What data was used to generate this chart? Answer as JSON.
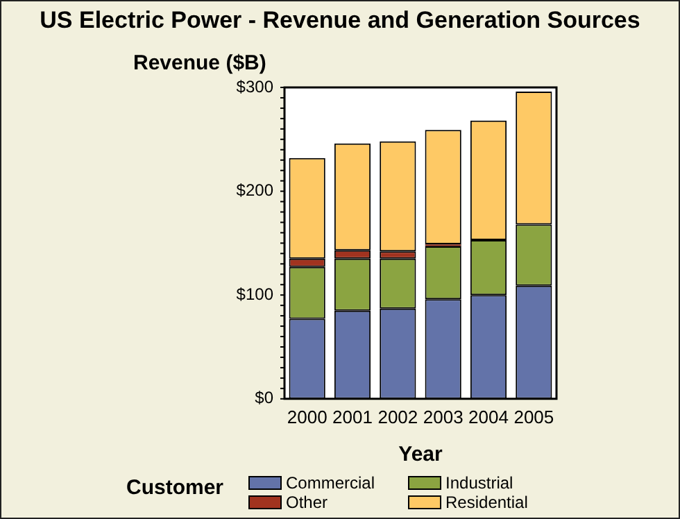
{
  "chart_data": {
    "type": "bar",
    "title": "US Electric Power - Revenue and Generation Sources",
    "xlabel": "Year",
    "ylabel": "Revenue ($B)",
    "legend_title": "Customer",
    "categories": [
      "2000",
      "2001",
      "2002",
      "2003",
      "2004",
      "2005"
    ],
    "stacked": true,
    "series": [
      {
        "name": "Commercial",
        "color": "#6373a9",
        "values": [
          77,
          85,
          87,
          96,
          100,
          109
        ]
      },
      {
        "name": "Industrial",
        "color": "#8ba441",
        "values": [
          50,
          50,
          48,
          51,
          53,
          59
        ]
      },
      {
        "name": "Other",
        "color": "#a1331f",
        "values": [
          8,
          8,
          7,
          2,
          0,
          0
        ]
      },
      {
        "name": "Residential",
        "color": "#fec965",
        "values": [
          97,
          103,
          106,
          110,
          115,
          128
        ]
      }
    ],
    "ylim": [
      0,
      300
    ],
    "yticks": [
      {
        "value": 0,
        "label": "$0"
      },
      {
        "value": 100,
        "label": "$100"
      },
      {
        "value": 200,
        "label": "$200"
      },
      {
        "value": 300,
        "label": "$300"
      }
    ],
    "grid": false,
    "legend": "bottom"
  }
}
